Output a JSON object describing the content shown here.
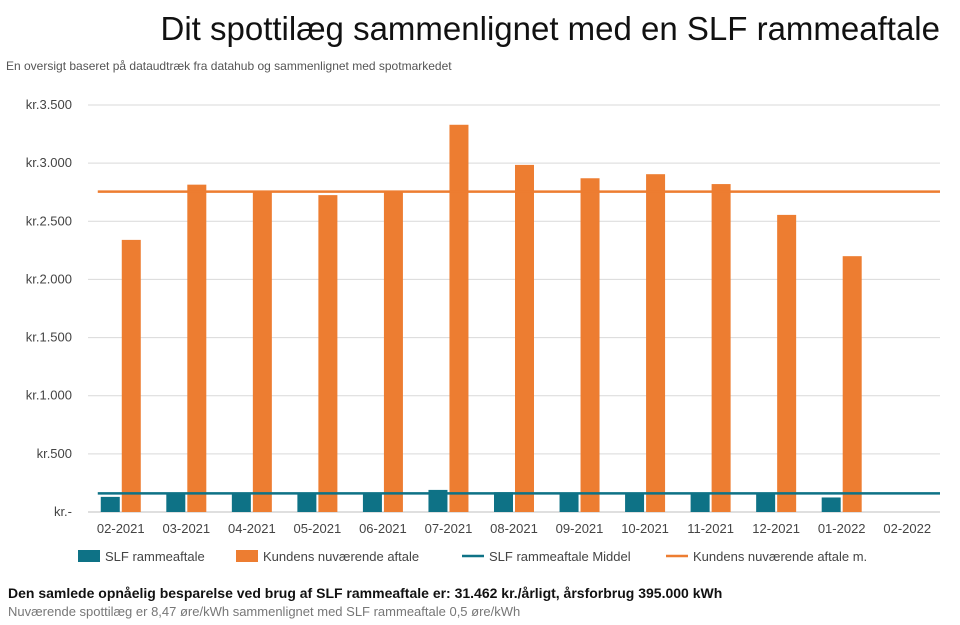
{
  "chart_data": {
    "type": "bar",
    "title": "Dit spottilæg sammenlignet med en SLF rammeaftale",
    "subtitle": "En oversigt baseret på dataudtræk fra datahub og sammenlignet med spotmarkedet",
    "categories": [
      "02-2021",
      "03-2021",
      "04-2021",
      "05-2021",
      "06-2021",
      "07-2021",
      "08-2021",
      "09-2021",
      "10-2021",
      "11-2021",
      "12-2021",
      "01-2022",
      "02-2022"
    ],
    "y_tick_labels": [
      "kr.-",
      "kr.500",
      "kr.1.000",
      "kr.1.500",
      "kr.2.000",
      "kr.2.500",
      "kr.3.000",
      "kr.3.500"
    ],
    "y_tick_values": [
      0,
      500,
      1000,
      1500,
      2000,
      2500,
      3000,
      3500
    ],
    "ylim": [
      0,
      3500
    ],
    "grid": true,
    "legend_position": "bottom",
    "series": [
      {
        "name": "SLF rammeaftale",
        "kind": "bar",
        "color": "#0e7286",
        "values": [
          130,
          165,
          165,
          162,
          162,
          190,
          170,
          165,
          165,
          165,
          162,
          125,
          null
        ]
      },
      {
        "name": "Kundens nuværende aftale",
        "kind": "bar",
        "color": "#ed7d31",
        "values": [
          2340,
          2815,
          2760,
          2725,
          2760,
          3330,
          2985,
          2870,
          2905,
          2820,
          2555,
          2200,
          null
        ]
      },
      {
        "name": "SLF rammeaftale Middel",
        "kind": "line",
        "color": "#0e7286",
        "value": 160
      },
      {
        "name": "Kundens nuværende aftale m.",
        "kind": "line",
        "color": "#ed7d31",
        "value": 2755
      }
    ]
  },
  "footer": {
    "summary": "Den samlede opnåelig besparelse ved brug af SLF rammeaftale er: 31.462 kr./årligt, årsforbrug 395.000 kWh",
    "note": "Nuværende spottilæg er 8,47 øre/kWh sammenlignet med SLF rammeaftale 0,5 øre/kWh"
  }
}
